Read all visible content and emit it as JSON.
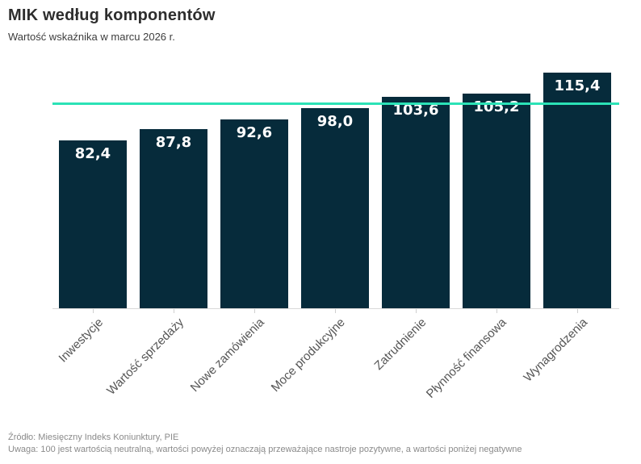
{
  "chart_data": {
    "type": "bar",
    "title": "MIK według komponentów",
    "subtitle": "Wartość wskaźnika w marcu 2026 r.",
    "categories": [
      "Inwestycje",
      "Wartość sprzedaży",
      "Nowe zamówienia",
      "Moce produkcyjne",
      "Zatrudnienie",
      "Płynność finansowa",
      "Wynagrodzenia"
    ],
    "values": [
      82.4,
      87.8,
      92.6,
      98.0,
      103.6,
      105.2,
      115.4
    ],
    "value_labels": [
      "82,4",
      "87,8",
      "92,6",
      "98,0",
      "103,6",
      "105,2",
      "115,4"
    ],
    "reference_line": {
      "value": 100
    },
    "ylim": [
      0,
      125
    ],
    "grid": "off",
    "legend": "none",
    "bar_color": "#062b3b",
    "accent_color": "#2be2b6",
    "value_label_color": "#ffffff",
    "axis_label_color": "#555555"
  },
  "footer": {
    "source": "Źródło: Miesięczny Indeks Koniunktury, PIE",
    "note": "Uwaga: 100 jest wartością neutralną, wartości powyżej oznaczają przeważające nastroje pozytywne, a wartości poniżej negatywne"
  }
}
